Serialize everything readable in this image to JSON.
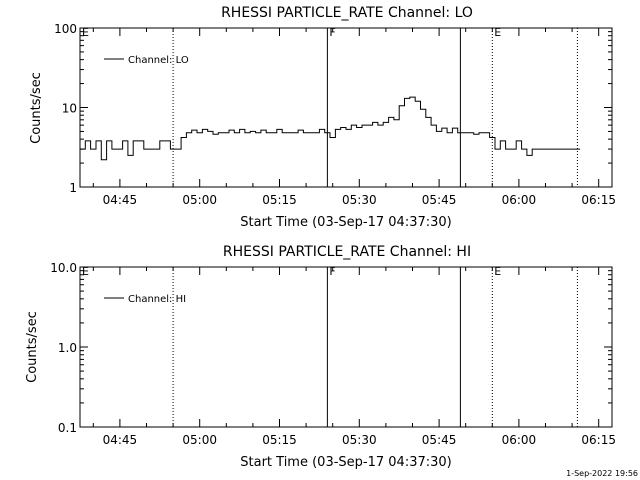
{
  "chart_data": [
    {
      "type": "line",
      "title": "RHESSI PARTICLE_RATE Channel: LO",
      "xlabel": "Start Time (03-Sep-17 04:37:30)",
      "ylabel": "Counts/sec",
      "yscale": "log",
      "ylim": [
        1,
        100
      ],
      "yticks": [
        "1",
        "10",
        "100"
      ],
      "xlim_minutes": [
        277.5,
        377.5
      ],
      "xticks": [
        "04:45",
        "05:00",
        "05:15",
        "05:30",
        "05:45",
        "06:00",
        "06:15"
      ],
      "legend": "top-left",
      "markers": [
        {
          "label": "E",
          "time": "04:37:30",
          "style": "dotted"
        },
        {
          "label": "",
          "time": "04:55",
          "style": "dotted"
        },
        {
          "label": "F",
          "time": "05:24",
          "style": "solid"
        },
        {
          "label": "",
          "time": "05:49",
          "style": "solid"
        },
        {
          "label": "E",
          "time": "05:55",
          "style": "dotted"
        },
        {
          "label": "",
          "time": "06:11",
          "style": "dotted"
        }
      ],
      "series": [
        {
          "name": "Channel: LO",
          "x": [
            "04:37",
            "04:38",
            "04:39",
            "04:40",
            "04:41",
            "04:42",
            "04:43",
            "04:44",
            "04:45",
            "04:46",
            "04:47",
            "04:48",
            "04:49",
            "04:50",
            "04:51",
            "04:52",
            "04:53",
            "04:54",
            "04:55",
            "04:56",
            "04:57",
            "04:58",
            "04:59",
            "05:00",
            "05:01",
            "05:02",
            "05:03",
            "05:04",
            "05:05",
            "05:06",
            "05:07",
            "05:08",
            "05:09",
            "05:10",
            "05:11",
            "05:12",
            "05:13",
            "05:14",
            "05:15",
            "05:16",
            "05:17",
            "05:18",
            "05:19",
            "05:20",
            "05:21",
            "05:22",
            "05:23",
            "05:24",
            "05:25",
            "05:26",
            "05:27",
            "05:28",
            "05:29",
            "05:30",
            "05:31",
            "05:32",
            "05:33",
            "05:34",
            "05:35",
            "05:36",
            "05:37",
            "05:38",
            "05:39",
            "05:40",
            "05:41",
            "05:42",
            "05:43",
            "05:44",
            "05:45",
            "05:46",
            "05:47",
            "05:48",
            "05:49",
            "05:50",
            "05:51",
            "05:52",
            "05:53",
            "05:54",
            "05:55",
            "05:56",
            "05:57",
            "05:58",
            "05:59",
            "06:00",
            "06:01",
            "06:02",
            "06:03",
            "06:04",
            "06:05",
            "06:06",
            "06:07",
            "06:08",
            "06:09",
            "06:10"
          ],
          "values": [
            3,
            3.8,
            3,
            3.8,
            2.2,
            3.8,
            3,
            3,
            3.8,
            2.5,
            3.8,
            3.8,
            3,
            3,
            3,
            3.8,
            3.8,
            3,
            3,
            4.2,
            4.8,
            5.2,
            4.8,
            5.3,
            5,
            4.6,
            4.8,
            4.8,
            5.2,
            4.8,
            5.3,
            4.8,
            5,
            4.8,
            5.2,
            4.8,
            4.8,
            5.3,
            4.8,
            4.8,
            4.8,
            5.2,
            4.8,
            4.8,
            4.8,
            5.3,
            4.8,
            4.2,
            5.3,
            5.6,
            5.3,
            6,
            5.6,
            6,
            6,
            6.5,
            6,
            6.5,
            7.5,
            7,
            10.5,
            13,
            13.5,
            12,
            9.5,
            7.5,
            6,
            5,
            5.5,
            4.8,
            5.5,
            4.8,
            4.8,
            4.8,
            4.6,
            4.8,
            4.8,
            4.2,
            3,
            3.8,
            3,
            3,
            3.8,
            3,
            2.5,
            3,
            3,
            3,
            3,
            3,
            3,
            3,
            3,
            3
          ]
        }
      ]
    },
    {
      "type": "line",
      "title": "RHESSI PARTICLE_RATE Channel: HI",
      "xlabel": "Start Time (03-Sep-17 04:37:30)",
      "ylabel": "Counts/sec",
      "yscale": "log",
      "ylim": [
        0.1,
        10
      ],
      "yticks": [
        "0.1",
        "1.0",
        "10.0"
      ],
      "xlim_minutes": [
        277.5,
        377.5
      ],
      "xticks": [
        "04:45",
        "05:00",
        "05:15",
        "05:30",
        "05:45",
        "06:00",
        "06:15"
      ],
      "legend": "top-left",
      "markers": [
        {
          "label": "E",
          "time": "04:37:30",
          "style": "dotted"
        },
        {
          "label": "",
          "time": "04:55",
          "style": "dotted"
        },
        {
          "label": "F",
          "time": "05:24",
          "style": "solid"
        },
        {
          "label": "",
          "time": "05:49",
          "style": "solid"
        },
        {
          "label": "E",
          "time": "05:55",
          "style": "dotted"
        },
        {
          "label": "",
          "time": "06:11",
          "style": "dotted"
        }
      ],
      "series": [
        {
          "name": "Channel: HI",
          "x": [],
          "values": []
        }
      ]
    }
  ],
  "footer": {
    "timestamp": "1-Sep-2022 19:56"
  }
}
